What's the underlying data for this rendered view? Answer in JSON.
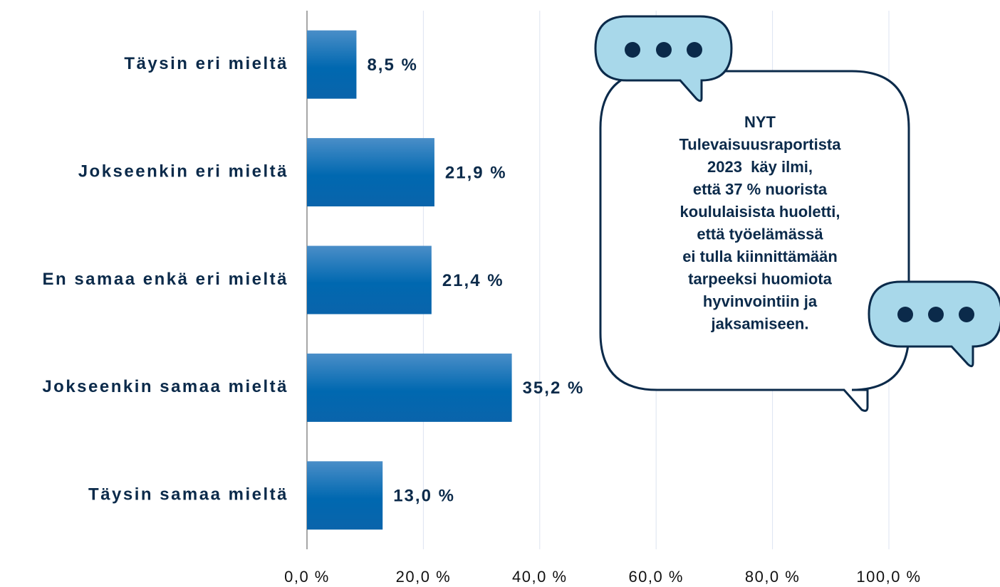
{
  "chart_data": {
    "type": "barh",
    "categories": [
      "Täysin eri mieltä",
      "Jokseenkin eri mieltä",
      "En samaa enkä eri mieltä",
      "Jokseenkin samaa mieltä",
      "Täysin samaa mieltä"
    ],
    "values": [
      8.5,
      21.9,
      21.4,
      35.2,
      13.0
    ],
    "value_labels": [
      "8,5 %",
      "21,9 %",
      "21,4 %",
      "35,2 %",
      "13,0 %"
    ],
    "color": "#0068b0",
    "xlim": [
      0,
      100
    ],
    "xticks": [
      {
        "value": 0,
        "label": "0,0 %"
      },
      {
        "value": 20,
        "label": "20,0 %"
      },
      {
        "value": 40,
        "label": "40,0 %"
      },
      {
        "value": 60,
        "label": "60,0 %"
      },
      {
        "value": 80,
        "label": "80,0 %"
      },
      {
        "value": 100,
        "label": "100,0 %"
      }
    ],
    "grid": true,
    "annotation": [
      "NYT",
      "Tulevaisuusraportista",
      "2023  käy ilmi,",
      "että 37 % nuorista",
      "koululaisista huoletti,",
      "että työelämässä",
      "ei tulla kiinnittämään",
      "tarpeeksi huomiota",
      "hyvinvointiin ja",
      "jaksamiseen."
    ]
  }
}
